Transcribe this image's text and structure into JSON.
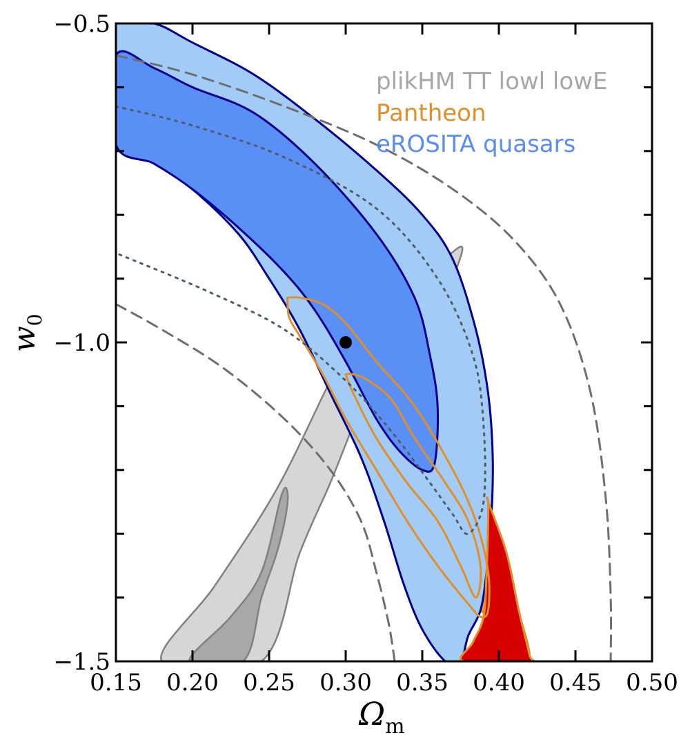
{
  "chart_data": {
    "type": "contour",
    "xlabel": "Ω",
    "xlabel_sub": "m",
    "ylabel": "w",
    "ylabel_sub": "0",
    "xlim": [
      0.15,
      0.5
    ],
    "ylim": [
      -1.5,
      -0.5
    ],
    "xticks": [
      0.15,
      0.2,
      0.25,
      0.3,
      0.35,
      0.4,
      0.45,
      0.5
    ],
    "xtick_labels": [
      "0.15",
      "0.20",
      "0.25",
      "0.30",
      "0.35",
      "0.40",
      "0.45",
      "0.50"
    ],
    "yticks": [
      -1.5,
      -1.0,
      -0.5
    ],
    "ytick_labels": [
      "−1.5",
      "−1.0",
      "−0.5"
    ],
    "ytick_minor": [
      -1.4,
      -1.3,
      -1.2,
      -1.1,
      -0.9,
      -0.8,
      -0.7,
      -0.6
    ],
    "legend": [
      {
        "label": "plikHM TT lowl lowE",
        "color": "#a6a6a6"
      },
      {
        "label": "Pantheon",
        "color": "#e08f2a"
      },
      {
        "label": "eROSITA quasars",
        "color": "#5b8def"
      }
    ],
    "fiducial_point": {
      "x": 0.3,
      "y": -1.0
    },
    "contours": [
      {
        "name": "planck-outer",
        "fill": "#d6d6d6",
        "stroke": "#808080",
        "width": 2.5,
        "points": [
          [
            0.18,
            -1.5
          ],
          [
            0.215,
            -1.38
          ],
          [
            0.255,
            -1.23
          ],
          [
            0.29,
            -1.06
          ],
          [
            0.305,
            -1.0
          ],
          [
            0.325,
            -0.95
          ],
          [
            0.355,
            -0.89
          ],
          [
            0.375,
            -0.85
          ],
          [
            0.373,
            -0.88
          ],
          [
            0.365,
            -0.92
          ],
          [
            0.35,
            -0.97
          ],
          [
            0.33,
            -1.03
          ],
          [
            0.315,
            -1.08
          ],
          [
            0.305,
            -1.13
          ],
          [
            0.29,
            -1.22
          ],
          [
            0.27,
            -1.33
          ],
          [
            0.245,
            -1.5
          ]
        ]
      },
      {
        "name": "planck-inner",
        "fill": "#a8a8a8",
        "stroke": "#808080",
        "width": 2.5,
        "points": [
          [
            0.198,
            -1.5
          ],
          [
            0.225,
            -1.43
          ],
          [
            0.245,
            -1.36
          ],
          [
            0.258,
            -1.24
          ],
          [
            0.262,
            -1.235
          ],
          [
            0.261,
            -1.27
          ],
          [
            0.255,
            -1.33
          ],
          [
            0.245,
            -1.4
          ],
          [
            0.233,
            -1.5
          ]
        ]
      },
      {
        "name": "pantheon-outer",
        "fill": "#ff9a2f",
        "stroke": "#e08f2a",
        "width": 3,
        "points": [
          [
            0.388,
            -1.42
          ],
          [
            0.395,
            -1.35
          ],
          [
            0.398,
            -1.32
          ],
          [
            0.4,
            -1.32
          ],
          [
            0.41,
            -1.4
          ],
          [
            0.42,
            -1.49
          ],
          [
            0.41,
            -1.49
          ],
          [
            0.397,
            -1.44
          ],
          [
            0.388,
            -1.42
          ]
        ]
      },
      {
        "name": "erosita-outer",
        "fill": "#a2cbf5",
        "stroke": "#00008b",
        "width": 3,
        "points": [
          [
            0.15,
            -0.5
          ],
          [
            0.175,
            -0.5
          ],
          [
            0.2,
            -0.53
          ],
          [
            0.24,
            -0.58
          ],
          [
            0.28,
            -0.65
          ],
          [
            0.32,
            -0.73
          ],
          [
            0.35,
            -0.8
          ],
          [
            0.37,
            -0.87
          ],
          [
            0.385,
            -0.98
          ],
          [
            0.393,
            -1.08
          ],
          [
            0.396,
            -1.18
          ],
          [
            0.395,
            -1.28
          ],
          [
            0.392,
            -1.36
          ],
          [
            0.388,
            -1.42
          ],
          [
            0.38,
            -1.46
          ],
          [
            0.375,
            -1.5
          ],
          [
            0.365,
            -1.5
          ],
          [
            0.35,
            -1.45
          ],
          [
            0.338,
            -1.38
          ],
          [
            0.325,
            -1.28
          ],
          [
            0.31,
            -1.18
          ],
          [
            0.29,
            -1.08
          ],
          [
            0.27,
            -0.98
          ],
          [
            0.25,
            -0.9
          ],
          [
            0.23,
            -0.83
          ],
          [
            0.2,
            -0.76
          ],
          [
            0.17,
            -0.71
          ],
          [
            0.15,
            -0.68
          ]
        ]
      },
      {
        "name": "red-region",
        "fill": "#d60000",
        "stroke": "#e08f2a",
        "width": 3,
        "points": [
          [
            0.393,
            -1.25
          ],
          [
            0.405,
            -1.33
          ],
          [
            0.413,
            -1.42
          ],
          [
            0.42,
            -1.49
          ],
          [
            0.42,
            -1.5
          ],
          [
            0.377,
            -1.5
          ],
          [
            0.383,
            -1.47
          ],
          [
            0.39,
            -1.43
          ],
          [
            0.392,
            -1.36
          ],
          [
            0.393,
            -1.28
          ],
          [
            0.393,
            -1.25
          ]
        ]
      },
      {
        "name": "erosita-inner",
        "fill": "#5a8ff5",
        "stroke": "#00008b",
        "width": 3,
        "points": [
          [
            0.15,
            -0.55
          ],
          [
            0.175,
            -0.57
          ],
          [
            0.2,
            -0.6
          ],
          [
            0.24,
            -0.64
          ],
          [
            0.28,
            -0.72
          ],
          [
            0.32,
            -0.83
          ],
          [
            0.345,
            -0.93
          ],
          [
            0.355,
            -1.02
          ],
          [
            0.36,
            -1.1
          ],
          [
            0.358,
            -1.19
          ],
          [
            0.35,
            -1.2
          ],
          [
            0.335,
            -1.17
          ],
          [
            0.32,
            -1.12
          ],
          [
            0.3,
            -1.03
          ],
          [
            0.28,
            -0.95
          ],
          [
            0.26,
            -0.89
          ],
          [
            0.23,
            -0.82
          ],
          [
            0.2,
            -0.76
          ],
          [
            0.175,
            -0.72
          ],
          [
            0.15,
            -0.69
          ]
        ]
      }
    ],
    "open_curves": [
      {
        "name": "pantheon-inner",
        "stroke": "#e08f2a",
        "width": 3,
        "dash": "",
        "points": [
          [
            0.3,
            -1.05
          ],
          [
            0.305,
            -1.08
          ],
          [
            0.32,
            -1.15
          ],
          [
            0.34,
            -1.22
          ],
          [
            0.36,
            -1.28
          ],
          [
            0.375,
            -1.35
          ],
          [
            0.385,
            -1.4
          ],
          [
            0.388,
            -1.35
          ],
          [
            0.38,
            -1.28
          ],
          [
            0.365,
            -1.22
          ],
          [
            0.345,
            -1.15
          ],
          [
            0.33,
            -1.09
          ],
          [
            0.315,
            -1.06
          ],
          [
            0.305,
            -1.05
          ],
          [
            0.3,
            -1.05
          ]
        ]
      },
      {
        "name": "pantheon-outer-line",
        "stroke": "#e08f2a",
        "width": 3,
        "dash": "",
        "points": [
          [
            0.262,
            -0.93
          ],
          [
            0.27,
            -0.93
          ],
          [
            0.285,
            -0.94
          ],
          [
            0.3,
            -0.97
          ],
          [
            0.32,
            -1.03
          ],
          [
            0.345,
            -1.1
          ],
          [
            0.37,
            -1.2
          ],
          [
            0.385,
            -1.28
          ],
          [
            0.393,
            -1.36
          ],
          [
            0.393,
            -1.42
          ],
          [
            0.388,
            -1.43
          ],
          [
            0.38,
            -1.41
          ],
          [
            0.36,
            -1.35
          ],
          [
            0.34,
            -1.28
          ],
          [
            0.32,
            -1.2
          ],
          [
            0.3,
            -1.12
          ],
          [
            0.285,
            -1.05
          ],
          [
            0.27,
            -0.99
          ],
          [
            0.263,
            -0.96
          ],
          [
            0.262,
            -0.93
          ]
        ]
      },
      {
        "name": "dashed-outer-right",
        "stroke": "#6e6e6e",
        "width": 3,
        "dash": "16,10",
        "points": [
          [
            0.15,
            -0.55
          ],
          [
            0.2,
            -0.58
          ],
          [
            0.26,
            -0.63
          ],
          [
            0.32,
            -0.69
          ],
          [
            0.37,
            -0.76
          ],
          [
            0.41,
            -0.84
          ],
          [
            0.44,
            -0.94
          ],
          [
            0.46,
            -1.08
          ],
          [
            0.47,
            -1.25
          ],
          [
            0.473,
            -1.4
          ],
          [
            0.473,
            -1.5
          ]
        ]
      },
      {
        "name": "dashed-outer-left",
        "stroke": "#6e6e6e",
        "width": 3,
        "dash": "16,10",
        "points": [
          [
            0.15,
            -0.94
          ],
          [
            0.18,
            -0.98
          ],
          [
            0.22,
            -1.04
          ],
          [
            0.26,
            -1.12
          ],
          [
            0.29,
            -1.2
          ],
          [
            0.31,
            -1.28
          ],
          [
            0.32,
            -1.36
          ],
          [
            0.328,
            -1.44
          ],
          [
            0.332,
            -1.5
          ]
        ]
      },
      {
        "name": "dotted-inner-right",
        "stroke": "#4d5d6b",
        "width": 3,
        "dash": "3,8",
        "points": [
          [
            0.15,
            -0.63
          ],
          [
            0.2,
            -0.66
          ],
          [
            0.26,
            -0.71
          ],
          [
            0.32,
            -0.79
          ],
          [
            0.36,
            -0.9
          ],
          [
            0.383,
            -1.02
          ],
          [
            0.39,
            -1.13
          ],
          [
            0.39,
            -1.25
          ],
          [
            0.38,
            -1.3
          ],
          [
            0.37,
            -1.27
          ],
          [
            0.355,
            -1.22
          ],
          [
            0.33,
            -1.14
          ],
          [
            0.3,
            -1.06
          ],
          [
            0.26,
            -0.98
          ],
          [
            0.21,
            -0.92
          ],
          [
            0.15,
            -0.86
          ]
        ]
      }
    ]
  }
}
